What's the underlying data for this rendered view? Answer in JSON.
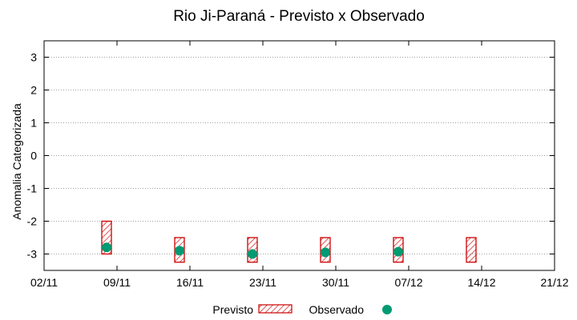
{
  "chart_data": {
    "type": "scatter",
    "title": "Rio Ji-Paraná - Previsto x Observado",
    "xlabel": "",
    "ylabel": "Anomalia Categorizada",
    "x_ticks": [
      "02/11",
      "09/11",
      "16/11",
      "23/11",
      "30/11",
      "07/12",
      "14/12",
      "21/12"
    ],
    "ylim": [
      -3.5,
      3.5
    ],
    "y_ticks": [
      3,
      2,
      1,
      0,
      -1,
      -2,
      -3
    ],
    "y_tick_labels": [
      "3",
      "2",
      "1",
      "0",
      "-1",
      "-2",
      "-3"
    ],
    "grid": true,
    "legend_position": "bottom-center",
    "series": [
      {
        "name": "Previsto",
        "kind": "range-box",
        "color": "#cc0000",
        "points": [
          {
            "x": "08/11",
            "low": -3.0,
            "high": -2.0
          },
          {
            "x": "15/11",
            "low": -3.25,
            "high": -2.5
          },
          {
            "x": "22/11",
            "low": -3.25,
            "high": -2.5
          },
          {
            "x": "29/11",
            "low": -3.25,
            "high": -2.5
          },
          {
            "x": "06/12",
            "low": -3.25,
            "high": -2.5
          },
          {
            "x": "13/12",
            "low": -3.25,
            "high": -2.5
          }
        ]
      },
      {
        "name": "Observado",
        "kind": "point",
        "color": "#009a73",
        "points": [
          {
            "x": "08/11",
            "y": -2.8
          },
          {
            "x": "15/11",
            "y": -2.9
          },
          {
            "x": "22/11",
            "y": -3.0
          },
          {
            "x": "29/11",
            "y": -2.95
          },
          {
            "x": "06/12",
            "y": -2.93
          }
        ]
      }
    ]
  }
}
